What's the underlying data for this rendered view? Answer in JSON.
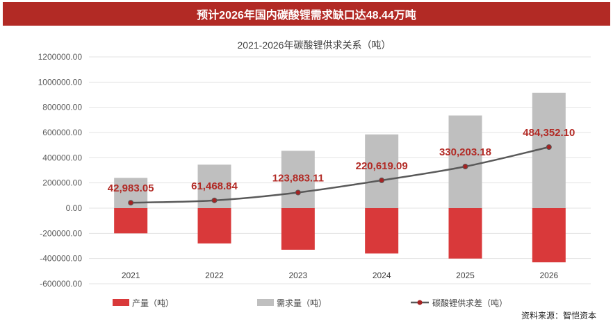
{
  "banner": {
    "title": "预计2026年国内碳酸锂需求缺口达48.44万吨"
  },
  "source": "资料来源：智恺资本",
  "colors": {
    "banner": "#b22a25",
    "production": "#d9393a",
    "demand": "#bfbfbf",
    "gap_line": "#595959",
    "gap_marker": "#a52323",
    "gap_label": "#b22a25"
  },
  "chart_data": {
    "type": "bar",
    "title": "2021-2026年碳酸锂供求关系（吨）",
    "categories": [
      "2021",
      "2022",
      "2023",
      "2024",
      "2025",
      "2026"
    ],
    "ylim": [
      -600000,
      1200000
    ],
    "y_ticks": [
      "1200000.00",
      "1000000.00",
      "800000.00",
      "600000.00",
      "400000.00",
      "200000.00",
      "0.00",
      "-200000.00",
      "-400000.00",
      "-600000.00"
    ],
    "grid": true,
    "legend_position": "bottom",
    "series": [
      {
        "name": "产量（吨）",
        "type": "bar",
        "values": [
          -200000,
          -280000,
          -330000,
          -360000,
          -400000,
          -430000
        ]
      },
      {
        "name": "需求量（吨）",
        "type": "bar",
        "values": [
          240000,
          345000,
          455000,
          585000,
          735000,
          915000
        ]
      },
      {
        "name": "碳酸锂供求差（吨）",
        "type": "line",
        "values": [
          42983.05,
          61468.84,
          123883.11,
          220619.09,
          330203.18,
          484352.1
        ],
        "labels": [
          "42,983.05",
          "61,468.84",
          "123,883.11",
          "220,619.09",
          "330,203.18",
          "484,352.10"
        ]
      }
    ]
  }
}
